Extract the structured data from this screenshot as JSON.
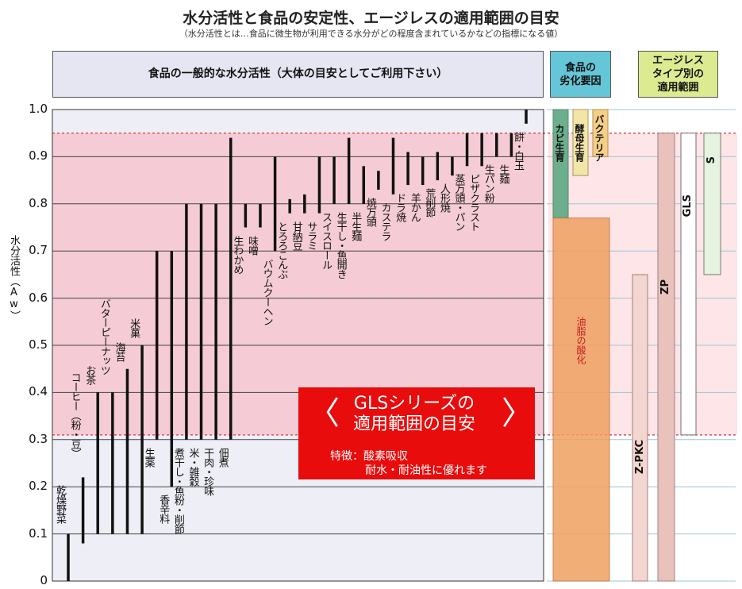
{
  "title": "水分活性と食品の安定性、エージレスの適用範囲の目安",
  "subtitle": "（水分活性とは…食品に微生物が利用できる水分がどの程度含まれているかなどの指標になる値）",
  "headers": {
    "general": "食品の一般的な水分活性（大体の目安としてご利用下さい）",
    "degradation": "食品の\n劣化要因",
    "ageless_type": "エージレス\nタイプ別の\n適用範囲"
  },
  "y_axis_label": "水分活性（Aw）",
  "gls_box": {
    "title_line1": "GLSシリーズの",
    "title_line2": "適用範囲の目安",
    "bracket_left": "〈",
    "bracket_right": "〉",
    "feature_line1": "特徴：酸素吸収",
    "feature_line2": "耐水・耐油性に優れます"
  },
  "colors": {
    "band_fill": "#f5c8d2",
    "band_border": "#e05050",
    "bar_color": "#111111",
    "grid": "#444444",
    "mold": "#6cae8e",
    "yeast": "#f2e5a8",
    "bacteria": "#f4cf86",
    "oil_oxidation": "#f0a060",
    "gls_box": "#e80c0c",
    "ageless_ZP": "#e9c2bc",
    "ageless_GLS": "#ffffff",
    "ageless_S": "#e6f3e0"
  },
  "chart_data": [
    {
      "type": "range-bar",
      "y_axis_label": "水分活性（Aw）",
      "ylim": [
        0,
        1.0
      ],
      "y_ticks": [
        "0",
        "0.1",
        "0.2",
        "0.3",
        "0.4",
        "0.5",
        "0.6",
        "0.7",
        "0.8",
        "0.9",
        "1.0"
      ],
      "y_tick_values": [
        0,
        0.1,
        0.2,
        0.3,
        0.4,
        0.5,
        0.6,
        0.7,
        0.8,
        0.9,
        1.0
      ],
      "grid": true,
      "highlight_band": {
        "low": 0.31,
        "high": 0.95
      },
      "categories": [
        "乾燥野菜",
        "コーヒー（粉・豆）",
        "お茶",
        "バターピーナッツ",
        "海苔",
        "米菓",
        "生薬",
        "香辛料",
        "煮干し・魚粉・削節",
        "米・雑穀",
        "干肉・珍味",
        "佃煮",
        "生わかめ",
        "味噌",
        "バウムクーヘン",
        "とろろこんぶ",
        "甘納豆",
        "サラミ",
        "スイスロール",
        "生干し・魚開き",
        "半生麺",
        "焼万頭",
        "カステラ",
        "ドラ焼",
        "羊かん",
        "荒削節",
        "人形焼",
        "蒸万頭・パン",
        "ピザクラスト",
        "生パン粉",
        "生麺",
        "餅・白玉"
      ],
      "low": [
        0.0,
        0.08,
        0.1,
        0.1,
        0.1,
        0.1,
        0.3,
        0.2,
        0.3,
        0.3,
        0.3,
        0.3,
        0.75,
        0.75,
        0.7,
        0.78,
        0.78,
        0.78,
        0.8,
        0.8,
        0.8,
        0.83,
        0.82,
        0.84,
        0.84,
        0.85,
        0.86,
        0.88,
        0.88,
        0.9,
        0.9,
        0.97
      ],
      "high": [
        0.1,
        0.22,
        0.4,
        0.4,
        0.45,
        0.5,
        0.7,
        0.7,
        0.8,
        0.8,
        0.8,
        0.94,
        0.8,
        0.8,
        0.9,
        0.81,
        0.82,
        0.9,
        0.9,
        0.94,
        0.88,
        0.87,
        0.94,
        0.91,
        0.9,
        0.91,
        0.9,
        0.95,
        0.95,
        0.95,
        0.95,
        1.0
      ]
    },
    {
      "type": "range-bar",
      "title": "食品の劣化要因",
      "ylim": [
        0,
        1.0
      ],
      "categories": [
        "カビ生育",
        "酵母生育",
        "バクテリア",
        "油脂の酸化"
      ],
      "low": [
        0.77,
        0.86,
        0.9,
        0.0
      ],
      "high": [
        1.0,
        1.0,
        1.0,
        0.77
      ]
    },
    {
      "type": "range-bar",
      "title": "エージレスタイプ別の適用範囲",
      "ylim": [
        0,
        1.0
      ],
      "categories": [
        "Z-PKC",
        "ZP",
        "GLS",
        "S"
      ],
      "low": [
        0.0,
        0.0,
        0.31,
        0.65
      ],
      "high": [
        0.65,
        0.95,
        0.95,
        0.95
      ]
    }
  ]
}
